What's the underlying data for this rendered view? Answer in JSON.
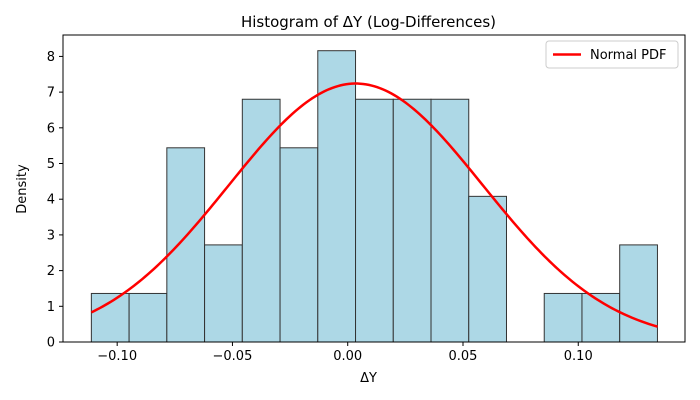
{
  "chart_data": {
    "type": "histogram",
    "title": "Histogram of ΔY (Log-Differences)",
    "xlabel": "ΔY",
    "ylabel": "Density",
    "xlim": [
      -0.1235,
      0.1463
    ],
    "ylim": [
      0,
      8.6
    ],
    "xticks": [
      -0.1,
      -0.05,
      0.0,
      0.05,
      0.1
    ],
    "xtick_labels": [
      "−0.10",
      "−0.05",
      "0.00",
      "0.05",
      "0.10"
    ],
    "yticks": [
      0,
      1,
      2,
      3,
      4,
      5,
      6,
      7,
      8
    ],
    "yticks_labels": [
      "0",
      "1",
      "2",
      "3",
      "4",
      "5",
      "6",
      "7",
      "8"
    ],
    "bin_start": -0.1112,
    "bin_width": 0.01637,
    "densities": [
      1.36,
      1.36,
      5.44,
      2.72,
      6.8,
      5.44,
      8.16,
      6.8,
      6.8,
      6.8,
      4.08,
      0,
      1.36,
      1.36,
      2.72
    ],
    "bar_color": "#add8e6",
    "bar_edge_color": "#333333",
    "normal_pdf": {
      "name": "Normal PDF",
      "color": "#ff0000",
      "mean": 0.0035,
      "std": 0.0551,
      "x_from": -0.1112,
      "x_to": 0.1344
    },
    "legend_position": "top-right",
    "grid": false
  }
}
